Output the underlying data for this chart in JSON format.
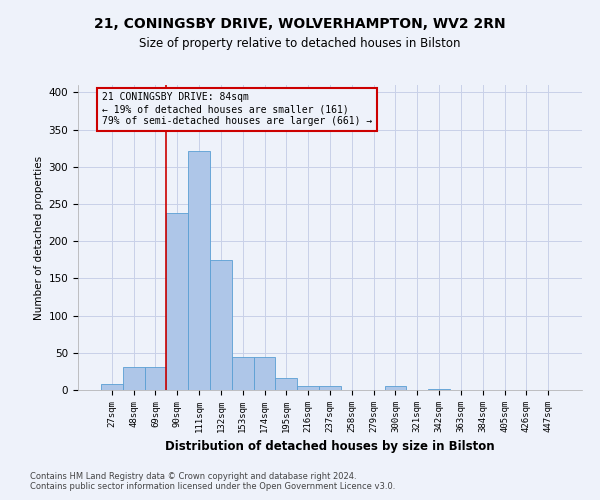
{
  "title1": "21, CONINGSBY DRIVE, WOLVERHAMPTON, WV2 2RN",
  "title2": "Size of property relative to detached houses in Bilston",
  "xlabel": "Distribution of detached houses by size in Bilston",
  "ylabel": "Number of detached properties",
  "bar_values": [
    8,
    31,
    31,
    238,
    321,
    175,
    45,
    45,
    16,
    5,
    5,
    0,
    0,
    5,
    0,
    2,
    0,
    0,
    0,
    0,
    0
  ],
  "bin_labels": [
    "27sqm",
    "48sqm",
    "69sqm",
    "90sqm",
    "111sqm",
    "132sqm",
    "153sqm",
    "174sqm",
    "195sqm",
    "216sqm",
    "237sqm",
    "258sqm",
    "279sqm",
    "300sqm",
    "321sqm",
    "342sqm",
    "363sqm",
    "384sqm",
    "405sqm",
    "426sqm",
    "447sqm"
  ],
  "bar_color": "#aec6e8",
  "bar_edge_color": "#5a9fd4",
  "vline_color": "#cc0000",
  "vline_x": 2.5,
  "annotation_line1": "21 CONINGSBY DRIVE: 84sqm",
  "annotation_line2": "← 19% of detached houses are smaller (161)",
  "annotation_line3": "79% of semi-detached houses are larger (661) →",
  "annotation_box_color": "#cc0000",
  "ylim": [
    0,
    410
  ],
  "yticks": [
    0,
    50,
    100,
    150,
    200,
    250,
    300,
    350,
    400
  ],
  "footer1": "Contains HM Land Registry data © Crown copyright and database right 2024.",
  "footer2": "Contains public sector information licensed under the Open Government Licence v3.0.",
  "bg_color": "#eef2fa",
  "grid_color": "#c8d0e8"
}
